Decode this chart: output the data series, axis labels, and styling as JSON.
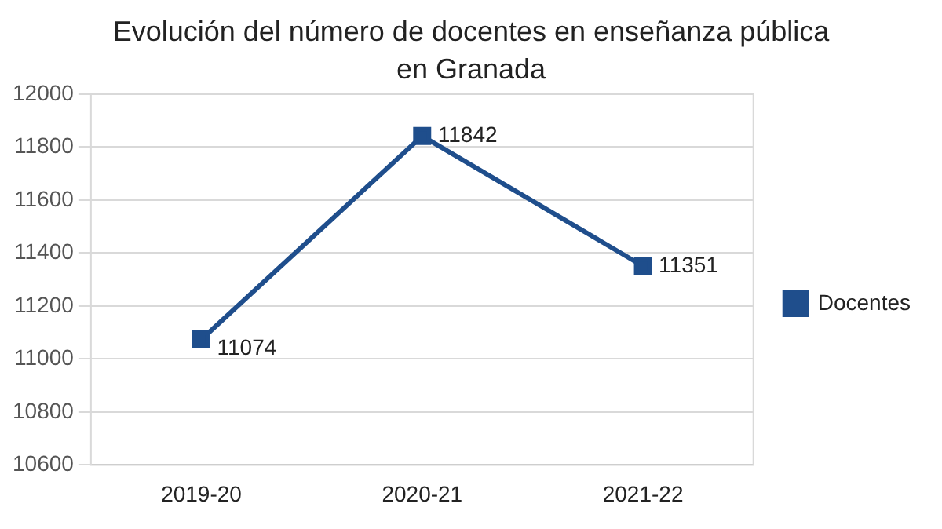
{
  "chart_data": {
    "type": "line",
    "title": "Evolución del número de docentes en enseñanza pública en Granada",
    "categories": [
      "2019-20",
      "2020-21",
      "2021-22"
    ],
    "series": [
      {
        "name": "Docentes",
        "color": "#1f4e8c",
        "values": [
          11074,
          11842,
          11351
        ]
      }
    ],
    "ylim": [
      10600,
      12000
    ],
    "yticks": [
      10600,
      10800,
      11000,
      11200,
      11400,
      11600,
      11800,
      12000
    ],
    "grid": "y",
    "legend": "right",
    "marker": "square",
    "line_style": "solid",
    "data_labels": true
  }
}
